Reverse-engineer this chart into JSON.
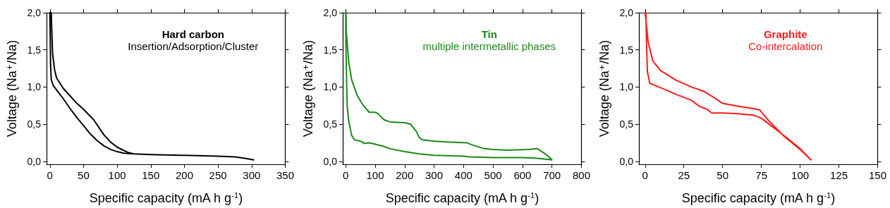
{
  "chart_data": [
    {
      "type": "line",
      "title": "Hard carbon",
      "subtitle": "Insertion/Adsorption/Cluster",
      "xlabel": "Specific capacity (mA h g$^{-1}$)",
      "ylabel": "Voltage (Na⁺/Na)",
      "marker": "none",
      "xlim": [
        -5,
        350
      ],
      "xticks": [
        0,
        50,
        100,
        150,
        200,
        250,
        300,
        350
      ],
      "ylim": [
        -0.04,
        2.0
      ],
      "yticks": [
        {
          "value": 0,
          "label": "0,0"
        },
        {
          "value": 0.5,
          "label": "0,5"
        },
        {
          "value": 1.0,
          "label": "1,0"
        },
        {
          "value": 1.5,
          "label": "1,5"
        },
        {
          "value": 2.0,
          "label": "2,0"
        }
      ],
      "series": [
        {
          "color": "#000000",
          "x": [
            0,
            1,
            2,
            5,
            10,
            20,
            30,
            40,
            50,
            60,
            70,
            80,
            90,
            100,
            110,
            125,
            150,
            200,
            250,
            275,
            290,
            303,
            290,
            275,
            250,
            200,
            150,
            125,
            116,
            100,
            90,
            80,
            65,
            50,
            40,
            30,
            20,
            10,
            7,
            4,
            3,
            2
          ],
          "values": [
            2.0,
            1.3,
            1.1,
            1.02,
            0.96,
            0.84,
            0.71,
            0.59,
            0.48,
            0.37,
            0.28,
            0.21,
            0.16,
            0.13,
            0.11,
            0.1,
            0.09,
            0.08,
            0.07,
            0.06,
            0.04,
            0.02,
            0.04,
            0.06,
            0.07,
            0.08,
            0.09,
            0.1,
            0.12,
            0.19,
            0.26,
            0.36,
            0.56,
            0.7,
            0.78,
            0.88,
            0.98,
            1.12,
            1.23,
            1.45,
            1.7,
            2.0
          ]
        }
      ]
    },
    {
      "type": "line",
      "title": "Tin",
      "subtitle": "multiple intermetallic phases",
      "xlabel": "Specific capacity (mA h g$^{-1}$)",
      "ylabel": "Voltage (Na⁺/Na)",
      "marker": "none",
      "xlim": [
        -10,
        800
      ],
      "xticks": [
        0,
        100,
        200,
        300,
        400,
        500,
        600,
        700,
        800
      ],
      "ylim": [
        -0.04,
        2.0
      ],
      "yticks": [
        {
          "value": 0,
          "label": "0,0"
        },
        {
          "value": 0.5,
          "label": "0,5"
        },
        {
          "value": 1.0,
          "label": "1,0"
        },
        {
          "value": 1.5,
          "label": "1,5"
        },
        {
          "value": 2.0,
          "label": "2,0"
        }
      ],
      "series": [
        {
          "color": "#1a8a1a",
          "x": [
            0,
            1,
            5,
            10,
            20,
            30,
            50,
            65,
            80,
            100,
            130,
            150,
            200,
            250,
            300,
            400,
            420,
            500,
            600,
            650,
            700,
            690,
            670,
            650,
            620,
            550,
            500,
            470,
            430,
            410,
            350,
            300,
            260,
            250,
            240,
            220,
            200,
            150,
            130,
            110,
            100,
            80,
            60,
            40,
            20,
            10,
            5,
            2,
            1
          ],
          "values": [
            2.0,
            1.5,
            0.75,
            0.55,
            0.35,
            0.29,
            0.27,
            0.24,
            0.25,
            0.23,
            0.2,
            0.17,
            0.13,
            0.1,
            0.08,
            0.07,
            0.06,
            0.05,
            0.05,
            0.04,
            0.02,
            0.06,
            0.12,
            0.17,
            0.16,
            0.15,
            0.16,
            0.17,
            0.22,
            0.25,
            0.26,
            0.27,
            0.29,
            0.32,
            0.4,
            0.5,
            0.52,
            0.53,
            0.56,
            0.64,
            0.66,
            0.66,
            0.75,
            0.88,
            1.1,
            1.35,
            1.6,
            1.75,
            2.0
          ]
        }
      ]
    },
    {
      "type": "line",
      "title": "Graphite",
      "subtitle": "Co-intercalation",
      "xlabel": "Specific capacity (mA h g$^{-1}$)",
      "ylabel": "Voltage (Na⁺/Na)",
      "marker": "none",
      "xlim": [
        -4,
        150
      ],
      "xticks": [
        0,
        25,
        50,
        75,
        100,
        125,
        150
      ],
      "ylim": [
        -0.04,
        2.0
      ],
      "yticks": [
        {
          "value": 0,
          "label": "0,0"
        },
        {
          "value": 0.5,
          "label": "0,5"
        },
        {
          "value": 1.0,
          "label": "1,0"
        },
        {
          "value": 1.5,
          "label": "1,5"
        },
        {
          "value": 2.0,
          "label": "2,0"
        }
      ],
      "series": [
        {
          "color": "#ff1a1a",
          "x": [
            0.5,
            1,
            1.5,
            3,
            10,
            20,
            25,
            30,
            35,
            40,
            43,
            50,
            60,
            70,
            75,
            80,
            90,
            100,
            107,
            100,
            90,
            80,
            74,
            70,
            60,
            50,
            45,
            38,
            30,
            20,
            10,
            5,
            2,
            0
          ],
          "values": [
            2.0,
            1.5,
            1.2,
            1.05,
            0.99,
            0.9,
            0.86,
            0.82,
            0.74,
            0.7,
            0.65,
            0.65,
            0.64,
            0.62,
            0.58,
            0.5,
            0.34,
            0.17,
            0.02,
            0.16,
            0.33,
            0.54,
            0.69,
            0.71,
            0.74,
            0.78,
            0.85,
            0.94,
            1.0,
            1.09,
            1.22,
            1.35,
            1.6,
            2.0
          ]
        }
      ]
    }
  ]
}
